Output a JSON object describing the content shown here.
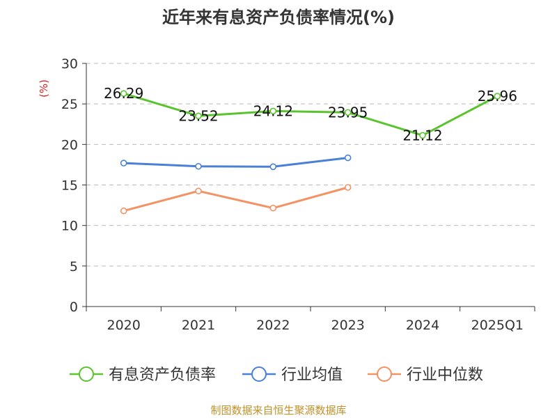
{
  "chart_data": {
    "type": "line",
    "title": "近年来有息资产负债率情况(%)",
    "unit_label": "(%)",
    "categories": [
      "2020",
      "2021",
      "2022",
      "2023",
      "2024",
      "2025Q1"
    ],
    "ylim": [
      0,
      30
    ],
    "yticks": [
      0,
      5,
      10,
      15,
      20,
      25,
      30
    ],
    "grid": true,
    "legend_position": "bottom",
    "series": [
      {
        "name": "有息资产负债率",
        "color": "#5ac42e",
        "values": [
          26.29,
          23.52,
          24.12,
          23.95,
          21.12,
          25.96
        ],
        "labels": [
          "26.29",
          "23.52",
          "24.12",
          "23.95",
          "21.12",
          "25.96"
        ]
      },
      {
        "name": "行业均值",
        "color": "#4a80d8",
        "values": [
          17.7,
          17.3,
          17.25,
          18.35,
          null,
          null
        ]
      },
      {
        "name": "行业中位数",
        "color": "#f39262",
        "values": [
          11.8,
          14.25,
          12.15,
          14.7,
          null,
          null
        ]
      }
    ],
    "source": "制图数据来自恒生聚源数据库"
  }
}
